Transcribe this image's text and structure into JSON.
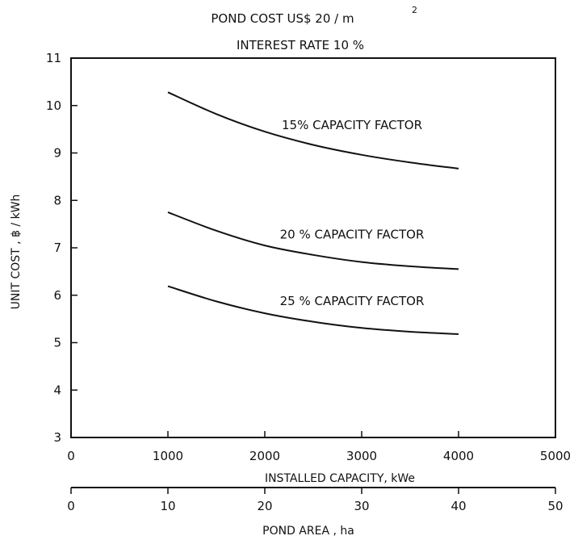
{
  "chart_data": {
    "type": "line",
    "title_line1": "POND COST US$ 20 / m",
    "title_sup": "2",
    "title_line2": "INTEREST RATE 10 %",
    "xlabel": "INSTALLED CAPACITY, kWe",
    "ylabel": "UNIT COST , ฿ / kWh",
    "x2label": "POND AREA , ha",
    "xlim": [
      0,
      5000
    ],
    "ylim": [
      3,
      11
    ],
    "x2lim": [
      0,
      50
    ],
    "xticks": [
      0,
      1000,
      2000,
      3000,
      4000,
      5000
    ],
    "xtick_labels": [
      "0",
      "1000",
      "2000",
      "3000",
      "4000",
      "5000"
    ],
    "yticks": [
      3,
      4,
      5,
      6,
      7,
      8,
      9,
      10,
      11
    ],
    "ytick_labels": [
      "3",
      "4",
      "5",
      "6",
      "7",
      "8",
      "9",
      "10",
      "11"
    ],
    "x2ticks": [
      0,
      10,
      20,
      30,
      40,
      50
    ],
    "x2tick_labels": [
      "0",
      "10",
      "20",
      "30",
      "40",
      "50"
    ],
    "grid": false,
    "x": [
      1000,
      1500,
      2000,
      2500,
      3000,
      3500,
      4000
    ],
    "series": [
      {
        "name": "15% CAPACITY FACTOR",
        "values": [
          10.28,
          9.82,
          9.45,
          9.17,
          8.96,
          8.8,
          8.67
        ]
      },
      {
        "name": "20 % CAPACITY FACTOR",
        "values": [
          7.75,
          7.36,
          7.05,
          6.85,
          6.7,
          6.61,
          6.55
        ]
      },
      {
        "name": "25 % CAPACITY FACTOR",
        "values": [
          6.19,
          5.87,
          5.62,
          5.44,
          5.31,
          5.23,
          5.18
        ]
      }
    ]
  }
}
